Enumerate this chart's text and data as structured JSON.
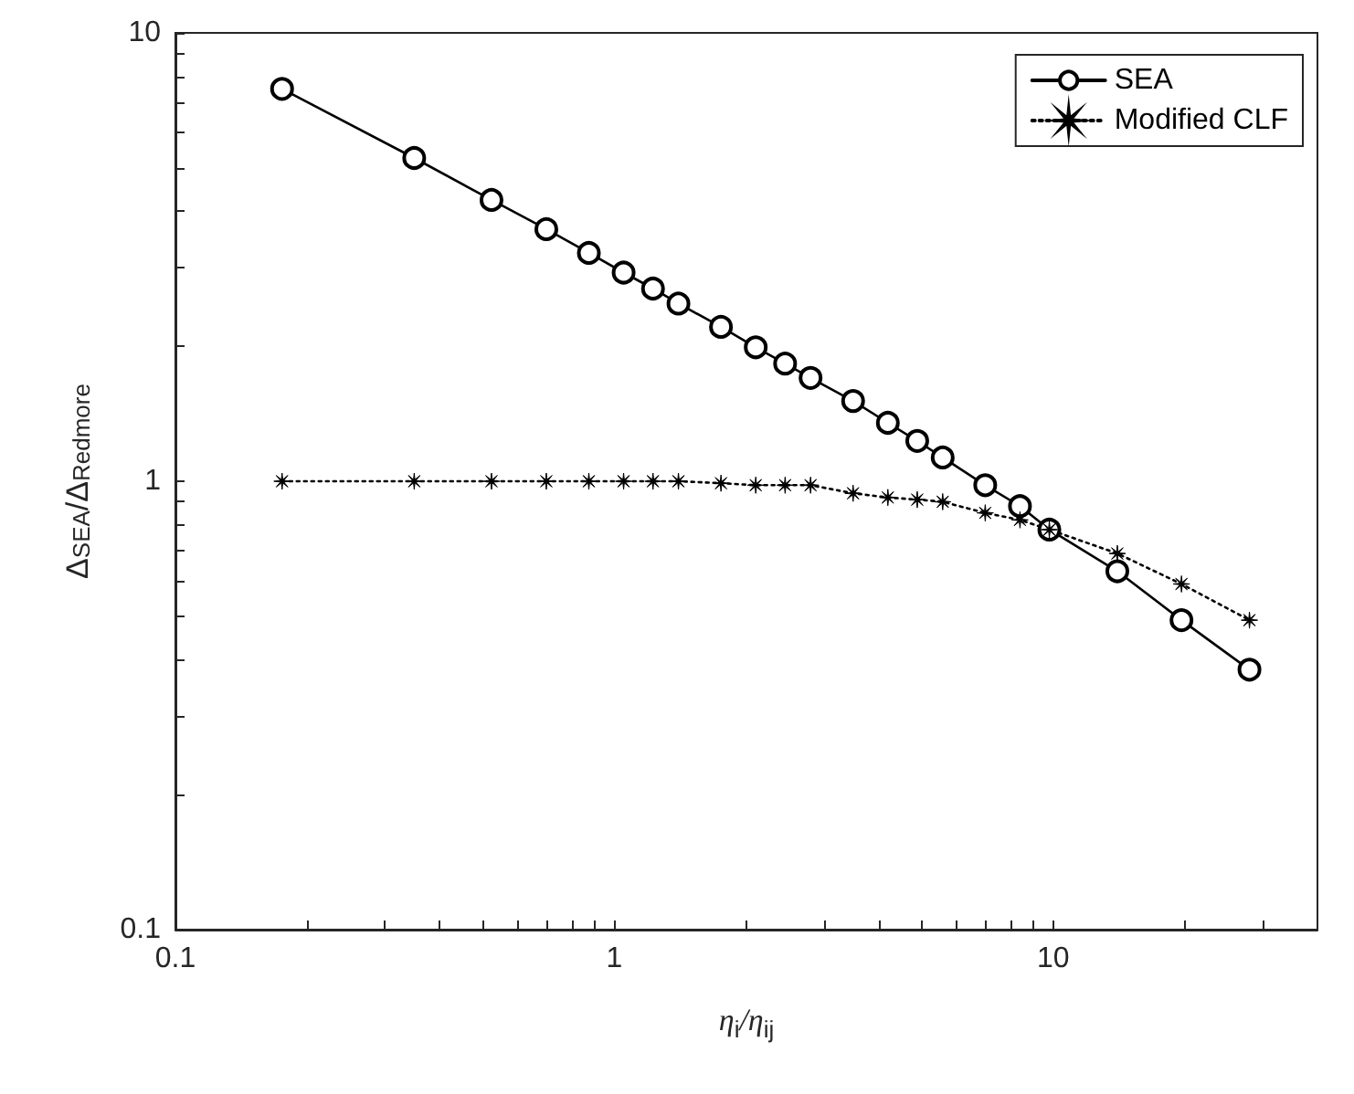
{
  "chart_data": {
    "type": "line",
    "xlabel": "η$_{i}$/η$_{ij}$",
    "ylabel": "Δ$_{SEA}$/Δ$_{Redmore}$",
    "log": "xy",
    "xlim": [
      0.1,
      40
    ],
    "ylim": [
      0.1,
      10
    ],
    "xticks": [
      0.1,
      {
        "value": 0.2,
        "label": null
      },
      {
        "value": 0.3,
        "label": null
      },
      {
        "value": 0.4,
        "label": null
      },
      {
        "value": 0.5,
        "label": null
      },
      {
        "value": 0.6,
        "label": null
      },
      {
        "value": 0.7,
        "label": null
      },
      {
        "value": 0.8,
        "label": null
      },
      {
        "value": 0.9,
        "label": null
      },
      1,
      {
        "value": 2,
        "label": null
      },
      {
        "value": 3,
        "label": null
      },
      {
        "value": 4,
        "label": null
      },
      {
        "value": 5,
        "label": null
      },
      {
        "value": 6,
        "label": null
      },
      {
        "value": 7,
        "label": null
      },
      {
        "value": 8,
        "label": null
      },
      {
        "value": 9,
        "label": null
      },
      10,
      {
        "value": 20,
        "label": null
      },
      {
        "value": 30,
        "label": null
      }
    ],
    "yticks": [
      0.1,
      {
        "value": 0.2,
        "label": null
      },
      {
        "value": 0.3,
        "label": null
      },
      {
        "value": 0.4,
        "label": null
      },
      {
        "value": 0.5,
        "label": null
      },
      {
        "value": 0.6,
        "label": null
      },
      {
        "value": 0.7,
        "label": null
      },
      {
        "value": 0.8,
        "label": null
      },
      {
        "value": 0.9,
        "label": null
      },
      1,
      {
        "value": 2,
        "label": null
      },
      {
        "value": 3,
        "label": null
      },
      {
        "value": 4,
        "label": null
      },
      {
        "value": 5,
        "label": null
      },
      {
        "value": 6,
        "label": null
      },
      {
        "value": 7,
        "label": null
      },
      {
        "value": 8,
        "label": null
      },
      {
        "value": 9,
        "label": null
      },
      10
    ],
    "x": [
      0.175,
      0.35,
      0.525,
      0.7,
      0.875,
      1.05,
      1.225,
      1.4,
      1.75,
      2.1,
      2.45,
      2.8,
      3.5,
      4.2,
      4.9,
      5.6,
      7,
      8.4,
      9.8,
      14,
      19.6,
      28
    ],
    "grid": false,
    "legend": "top right",
    "series": [
      {
        "name": "SEA",
        "color": "#000000",
        "marker": "circle",
        "line_style": "solid",
        "values": [
          7.5,
          5.26,
          4.24,
          3.65,
          3.23,
          2.92,
          2.69,
          2.49,
          2.21,
          1.99,
          1.83,
          1.7,
          1.51,
          1.35,
          1.23,
          1.13,
          0.98,
          0.88,
          0.78,
          0.63,
          0.49,
          0.38
        ]
      },
      {
        "name": "Modified CLF",
        "color": "#000000",
        "marker": "star",
        "line_style": "dotted",
        "values": [
          1,
          1,
          1,
          1,
          1,
          1,
          1,
          1,
          0.99,
          0.98,
          0.98,
          0.98,
          0.94,
          0.92,
          0.91,
          0.9,
          0.85,
          0.82,
          0.78,
          0.69,
          0.59,
          0.49
        ]
      }
    ]
  }
}
